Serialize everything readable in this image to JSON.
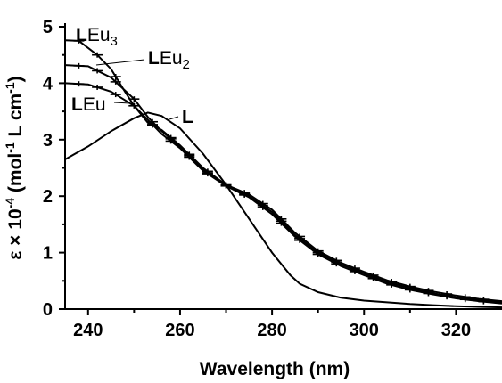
{
  "chart_data": {
    "type": "line",
    "xlabel": "Wavelength (nm)",
    "ylabel_parts": {
      "pre": "ε × 10",
      "exp": "-4",
      "mid": " (mol",
      "exp2": "-1",
      "mid2": " L cm",
      "exp3": "-1",
      "post": ")"
    },
    "xlim": [
      235,
      330
    ],
    "ylim": [
      0,
      5
    ],
    "x_ticks": [
      240,
      260,
      280,
      300,
      320
    ],
    "y_ticks": [
      0,
      1,
      2,
      3,
      4,
      5
    ],
    "grid": false,
    "series": [
      {
        "name": "L",
        "label": {
          "bold": "L",
          "rest": "",
          "sub": ""
        },
        "errorbars": false,
        "x": [
          235,
          240,
          245,
          250,
          253,
          256,
          260,
          265,
          270,
          275,
          280,
          284,
          286,
          290,
          295,
          300,
          305,
          310,
          315,
          320,
          325,
          330
        ],
        "y": [
          2.65,
          2.88,
          3.15,
          3.38,
          3.48,
          3.42,
          3.2,
          2.75,
          2.2,
          1.6,
          1.0,
          0.6,
          0.45,
          0.3,
          0.2,
          0.15,
          0.12,
          0.09,
          0.07,
          0.05,
          0.04,
          0.03
        ]
      },
      {
        "name": "LEu",
        "label": {
          "bold": "L",
          "rest": "Eu",
          "sub": ""
        },
        "errorbars": true,
        "x": [
          235,
          240,
          245,
          250,
          253,
          256,
          260,
          265,
          270,
          275,
          280,
          285,
          290,
          295,
          300,
          305,
          310,
          315,
          320,
          325,
          330
        ],
        "y": [
          4.0,
          3.98,
          3.85,
          3.6,
          3.35,
          3.1,
          2.85,
          2.45,
          2.18,
          1.98,
          1.68,
          1.28,
          0.97,
          0.76,
          0.6,
          0.45,
          0.34,
          0.26,
          0.19,
          0.14,
          0.1
        ]
      },
      {
        "name": "LEu2",
        "label": {
          "bold": "L",
          "rest": "Eu",
          "sub": "2"
        },
        "errorbars": true,
        "x": [
          235,
          240,
          245,
          250,
          253,
          256,
          260,
          265,
          270,
          275,
          280,
          285,
          290,
          295,
          300,
          305,
          310,
          315,
          320,
          325,
          330
        ],
        "y": [
          4.32,
          4.3,
          4.1,
          3.72,
          3.4,
          3.15,
          2.88,
          2.47,
          2.19,
          2.0,
          1.72,
          1.31,
          1.0,
          0.79,
          0.63,
          0.48,
          0.37,
          0.28,
          0.21,
          0.16,
          0.12
        ]
      },
      {
        "name": "LEu3",
        "label": {
          "bold": "L",
          "rest": "Eu",
          "sub": "3"
        },
        "errorbars": true,
        "x": [
          235,
          238,
          242,
          245,
          248,
          250,
          253,
          256,
          260,
          265,
          270,
          275,
          280,
          285,
          290,
          295,
          300,
          305,
          310,
          315,
          320,
          325,
          330
        ],
        "y": [
          4.76,
          4.75,
          4.5,
          4.25,
          3.85,
          3.6,
          3.3,
          3.17,
          2.9,
          2.5,
          2.2,
          2.03,
          1.76,
          1.35,
          1.03,
          0.82,
          0.66,
          0.51,
          0.4,
          0.31,
          0.24,
          0.18,
          0.14
        ]
      }
    ]
  }
}
